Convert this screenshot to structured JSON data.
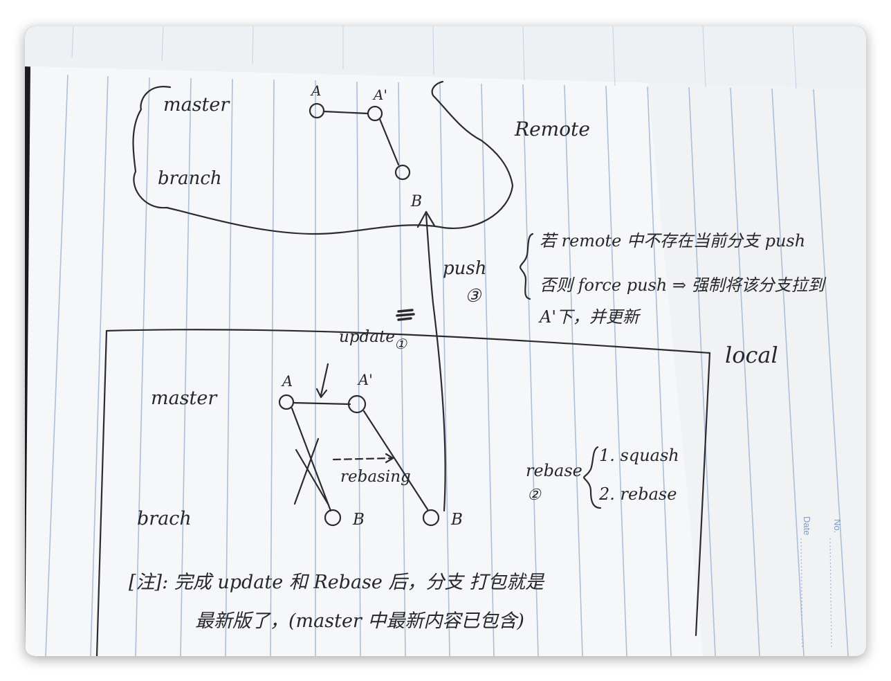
{
  "remote": {
    "master_label": "master",
    "branch_label": "branch",
    "node_a": "A",
    "node_a_prime": "A'",
    "node_b": "B",
    "region_label": "Remote"
  },
  "push": {
    "label": "push",
    "step": "③",
    "note_line1": "若 remote 中不存在当前分支 push",
    "note_line2": "否则 force push ⇒ 强制将该分支拉到",
    "note_line3": "A'下，并更新"
  },
  "local": {
    "region_label": "local",
    "update_label": "update",
    "update_step": "①",
    "master_label": "master",
    "branch_label": "brach",
    "node_a": "A",
    "node_a_prime": "A'",
    "node_b_old": "B",
    "node_b_new": "B",
    "rebasing_label": "rebasing",
    "rebase_label": "rebase",
    "rebase_step": "②",
    "rebase_opt1": "1. squash",
    "rebase_opt2": "2. rebase"
  },
  "note": {
    "line1": "[注]: 完成 update 和 Rebase 后，分支 打包就是",
    "line2": "最新版了，(master 中最新内容已包含)"
  },
  "margin": {
    "no_label": "No.",
    "date_label": "Date"
  }
}
